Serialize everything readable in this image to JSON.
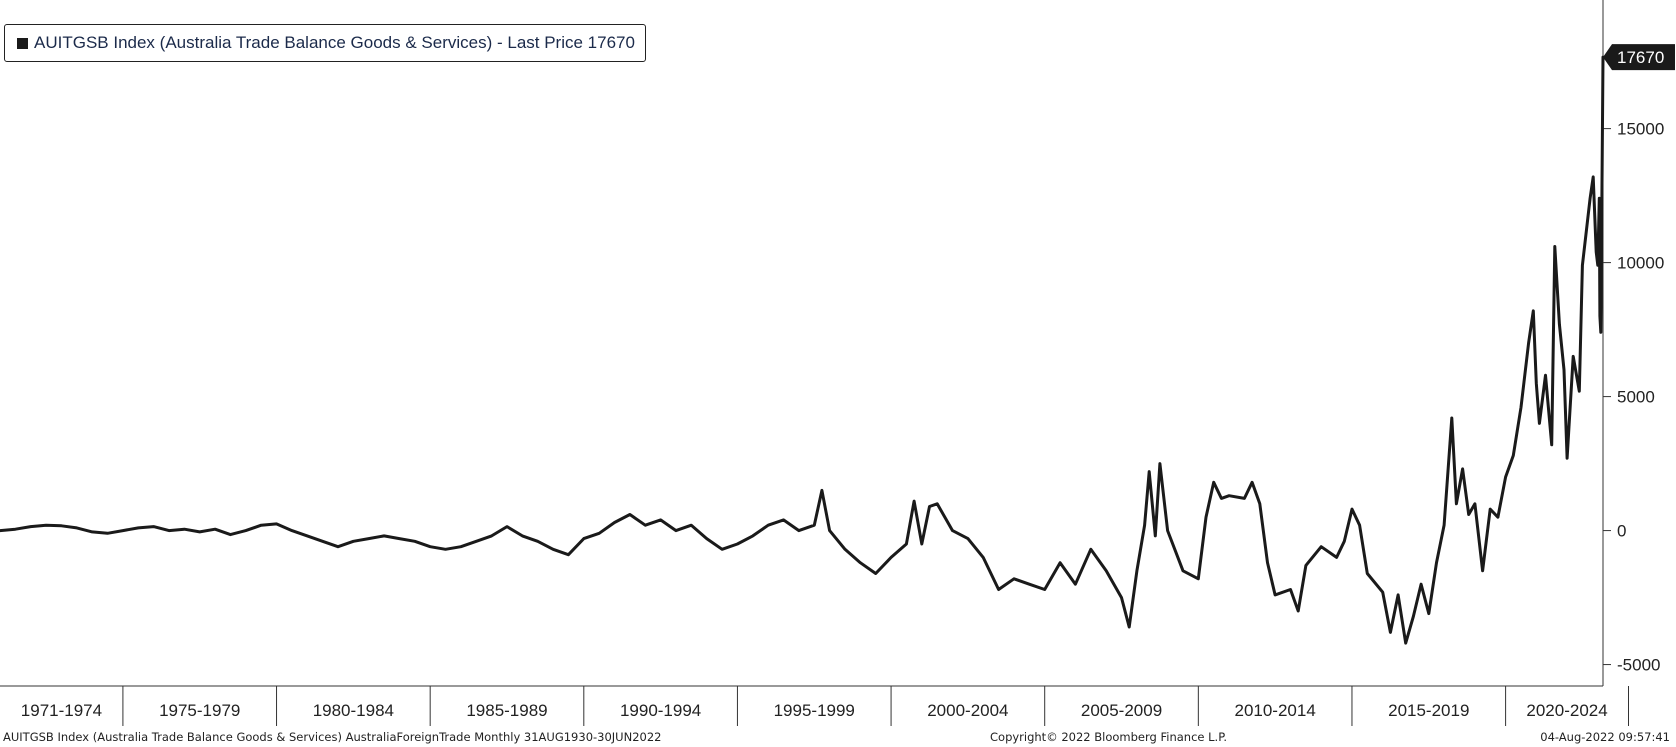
{
  "legend": {
    "text": "AUITGSB Index (Australia Trade Balance Goods & Services) - Last Price 17670"
  },
  "footer": {
    "left": "AUITGSB Index (Australia Trade Balance Goods & Services) AustraliaForeignTrade  Monthly 31AUG1930-30JUN2022",
    "center": "Copyright© 2022 Bloomberg Finance L.P.",
    "right": "04-Aug-2022 09:57:41"
  },
  "colors": {
    "line": "#1a1a1a",
    "last_label_bg": "#1a1a1a",
    "axis": "#333333"
  },
  "chart_data": {
    "type": "line",
    "title": "",
    "xlabel": "",
    "ylabel": "",
    "x_range": [
      1971.0,
      2023.17
    ],
    "ylim": [
      -5800,
      19800
    ],
    "y_ticks": [
      -5000,
      0,
      5000,
      10000,
      15000
    ],
    "y_tick_labels": [
      "-5000",
      "0",
      "5000",
      "10000",
      "15000"
    ],
    "x_categories": [
      "1971-1974",
      "1975-1979",
      "1980-1984",
      "1985-1989",
      "1990-1994",
      "1995-1999",
      "2000-2004",
      "2005-2009",
      "2010-2014",
      "2015-2019",
      "2020-2024"
    ],
    "x_category_bounds": [
      1971,
      1975,
      1980,
      1985,
      1990,
      1995,
      2000,
      2005,
      2010,
      2015,
      2020,
      2024
    ],
    "last_value": 17670,
    "last_value_label": "17670",
    "grid": false,
    "legend_position": "top-left",
    "series": [
      {
        "points": [
          [
            1971.0,
            0
          ],
          [
            1971.5,
            50
          ],
          [
            1972.0,
            150
          ],
          [
            1972.5,
            200
          ],
          [
            1973.0,
            180
          ],
          [
            1973.5,
            100
          ],
          [
            1974.0,
            -50
          ],
          [
            1974.5,
            -100
          ],
          [
            1975.0,
            0
          ],
          [
            1975.5,
            100
          ],
          [
            1976.0,
            150
          ],
          [
            1976.5,
            0
          ],
          [
            1977.0,
            50
          ],
          [
            1977.5,
            -50
          ],
          [
            1978.0,
            50
          ],
          [
            1978.5,
            -150
          ],
          [
            1979.0,
            0
          ],
          [
            1979.5,
            200
          ],
          [
            1980.0,
            250
          ],
          [
            1980.5,
            0
          ],
          [
            1981.0,
            -200
          ],
          [
            1981.5,
            -400
          ],
          [
            1982.0,
            -600
          ],
          [
            1982.5,
            -400
          ],
          [
            1983.0,
            -300
          ],
          [
            1983.5,
            -200
          ],
          [
            1984.0,
            -300
          ],
          [
            1984.5,
            -400
          ],
          [
            1985.0,
            -600
          ],
          [
            1985.5,
            -700
          ],
          [
            1986.0,
            -600
          ],
          [
            1986.5,
            -400
          ],
          [
            1987.0,
            -200
          ],
          [
            1987.5,
            150
          ],
          [
            1988.0,
            -200
          ],
          [
            1988.5,
            -400
          ],
          [
            1989.0,
            -700
          ],
          [
            1989.5,
            -900
          ],
          [
            1990.0,
            -300
          ],
          [
            1990.5,
            -100
          ],
          [
            1991.0,
            300
          ],
          [
            1991.5,
            600
          ],
          [
            1992.0,
            200
          ],
          [
            1992.5,
            400
          ],
          [
            1993.0,
            0
          ],
          [
            1993.5,
            200
          ],
          [
            1994.0,
            -300
          ],
          [
            1994.5,
            -700
          ],
          [
            1995.0,
            -500
          ],
          [
            1995.5,
            -200
          ],
          [
            1996.0,
            200
          ],
          [
            1996.5,
            400
          ],
          [
            1997.0,
            0
          ],
          [
            1997.5,
            200
          ],
          [
            1997.75,
            1500
          ],
          [
            1998.0,
            0
          ],
          [
            1998.5,
            -700
          ],
          [
            1999.0,
            -1200
          ],
          [
            1999.5,
            -1600
          ],
          [
            2000.0,
            -1000
          ],
          [
            2000.5,
            -500
          ],
          [
            2000.75,
            1100
          ],
          [
            2001.0,
            -500
          ],
          [
            2001.25,
            900
          ],
          [
            2001.5,
            1000
          ],
          [
            2002.0,
            0
          ],
          [
            2002.5,
            -300
          ],
          [
            2003.0,
            -1000
          ],
          [
            2003.5,
            -2200
          ],
          [
            2004.0,
            -1800
          ],
          [
            2004.5,
            -2000
          ],
          [
            2005.0,
            -2200
          ],
          [
            2005.5,
            -1200
          ],
          [
            2006.0,
            -2000
          ],
          [
            2006.5,
            -700
          ],
          [
            2007.0,
            -1500
          ],
          [
            2007.5,
            -2500
          ],
          [
            2007.75,
            -3600
          ],
          [
            2008.0,
            -1500
          ],
          [
            2008.25,
            200
          ],
          [
            2008.4,
            2200
          ],
          [
            2008.6,
            -200
          ],
          [
            2008.75,
            2500
          ],
          [
            2009.0,
            0
          ],
          [
            2009.5,
            -1500
          ],
          [
            2010.0,
            -1800
          ],
          [
            2010.25,
            500
          ],
          [
            2010.5,
            1800
          ],
          [
            2010.75,
            1200
          ],
          [
            2011.0,
            1300
          ],
          [
            2011.5,
            1200
          ],
          [
            2011.75,
            1800
          ],
          [
            2012.0,
            1000
          ],
          [
            2012.25,
            -1200
          ],
          [
            2012.5,
            -2400
          ],
          [
            2013.0,
            -2200
          ],
          [
            2013.25,
            -3000
          ],
          [
            2013.5,
            -1300
          ],
          [
            2014.0,
            -600
          ],
          [
            2014.5,
            -1000
          ],
          [
            2014.75,
            -400
          ],
          [
            2015.0,
            800
          ],
          [
            2015.25,
            200
          ],
          [
            2015.5,
            -1600
          ],
          [
            2016.0,
            -2300
          ],
          [
            2016.25,
            -3800
          ],
          [
            2016.5,
            -2400
          ],
          [
            2016.75,
            -4200
          ],
          [
            2017.0,
            -3200
          ],
          [
            2017.25,
            -2000
          ],
          [
            2017.5,
            -3100
          ],
          [
            2017.75,
            -1200
          ],
          [
            2018.0,
            200
          ],
          [
            2018.25,
            4200
          ],
          [
            2018.4,
            1000
          ],
          [
            2018.6,
            2300
          ],
          [
            2018.8,
            600
          ],
          [
            2019.0,
            1000
          ],
          [
            2019.25,
            -1500
          ],
          [
            2019.5,
            800
          ],
          [
            2019.75,
            500
          ],
          [
            2020.0,
            2000
          ],
          [
            2020.25,
            2800
          ],
          [
            2020.5,
            4600
          ],
          [
            2020.75,
            7000
          ],
          [
            2020.9,
            8200
          ],
          [
            2021.0,
            5500
          ],
          [
            2021.1,
            4000
          ],
          [
            2021.3,
            5800
          ],
          [
            2021.5,
            3200
          ],
          [
            2021.6,
            10600
          ],
          [
            2021.75,
            7700
          ],
          [
            2021.9,
            6000
          ],
          [
            2022.0,
            2700
          ],
          [
            2022.2,
            6500
          ],
          [
            2022.4,
            5200
          ],
          [
            2022.5,
            9900
          ],
          [
            2022.75,
            12400
          ],
          [
            2022.85,
            13200
          ],
          [
            2022.95,
            10400
          ],
          [
            2023.0,
            9900
          ],
          [
            2023.05,
            12400
          ],
          [
            2023.07,
            8000
          ],
          [
            2023.1,
            7400
          ],
          [
            2023.15,
            14800
          ],
          [
            2023.17,
            17670
          ]
        ]
      }
    ]
  }
}
